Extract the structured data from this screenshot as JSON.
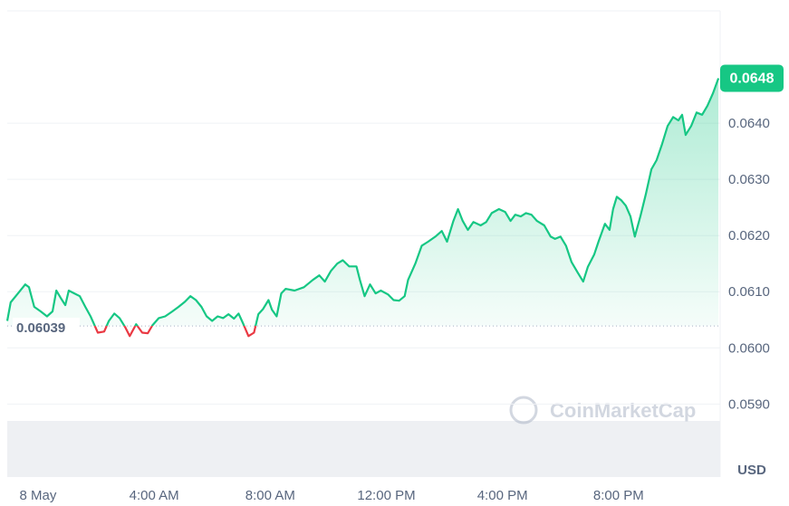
{
  "chart_data": {
    "type": "line",
    "color": "#16c784",
    "below_color": "#ea3943",
    "x": [
      -1.06,
      -0.94,
      -0.69,
      -0.44,
      -0.31,
      -0.13,
      0.09,
      0.31,
      0.5,
      0.63,
      0.78,
      0.94,
      1.06,
      1.25,
      1.44,
      1.63,
      1.81,
      2.06,
      2.28,
      2.44,
      2.63,
      2.81,
      3.0,
      3.16,
      3.38,
      3.59,
      3.78,
      3.94,
      4.16,
      4.38,
      4.63,
      4.84,
      5.06,
      5.25,
      5.44,
      5.63,
      5.81,
      6.0,
      6.19,
      6.38,
      6.56,
      6.75,
      6.91,
      7.06,
      7.25,
      7.44,
      7.59,
      7.75,
      7.94,
      8.06,
      8.22,
      8.38,
      8.53,
      8.84,
      9.16,
      9.47,
      9.69,
      9.88,
      10.09,
      10.31,
      10.5,
      10.72,
      10.97,
      11.09,
      11.25,
      11.44,
      11.63,
      11.81,
      12.06,
      12.25,
      12.44,
      12.63,
      12.75,
      13.0,
      13.22,
      13.44,
      13.69,
      13.91,
      14.09,
      14.31,
      14.47,
      14.63,
      14.81,
      15.0,
      15.25,
      15.44,
      15.63,
      15.88,
      16.09,
      16.28,
      16.44,
      16.63,
      16.81,
      17.0,
      17.19,
      17.44,
      17.66,
      17.81,
      18.0,
      18.19,
      18.38,
      18.59,
      18.78,
      18.94,
      19.16,
      19.31,
      19.53,
      19.69,
      19.81,
      19.94,
      20.09,
      20.25,
      20.41,
      20.56,
      20.75,
      20.94,
      21.13,
      21.31,
      21.5,
      21.69,
      21.88,
      22.06,
      22.19,
      22.31,
      22.5,
      22.69,
      22.88,
      23.06,
      23.25,
      23.44
    ],
    "values": [
      0.06048,
      0.06081,
      0.06097,
      0.06113,
      0.06108,
      0.06073,
      0.06065,
      0.06056,
      0.06065,
      0.06102,
      0.06089,
      0.06076,
      0.06102,
      0.06097,
      0.06092,
      0.06073,
      0.06056,
      0.06027,
      0.06029,
      0.06048,
      0.06061,
      0.06053,
      0.06037,
      0.06021,
      0.06042,
      0.06027,
      0.06026,
      0.0604,
      0.06053,
      0.06056,
      0.06065,
      0.06073,
      0.06082,
      0.06092,
      0.06085,
      0.06073,
      0.06056,
      0.06048,
      0.06056,
      0.06053,
      0.0606,
      0.06052,
      0.06061,
      0.06044,
      0.06021,
      0.06027,
      0.0606,
      0.06069,
      0.06085,
      0.06068,
      0.06056,
      0.06097,
      0.06105,
      0.06102,
      0.06108,
      0.06121,
      0.06129,
      0.06118,
      0.06137,
      0.0615,
      0.06156,
      0.06145,
      0.06145,
      0.06121,
      0.06092,
      0.06113,
      0.06097,
      0.06102,
      0.06095,
      0.06085,
      0.06084,
      0.06092,
      0.06121,
      0.0615,
      0.06182,
      0.06189,
      0.06198,
      0.06208,
      0.06189,
      0.06226,
      0.06247,
      0.06226,
      0.0621,
      0.06224,
      0.06218,
      0.06224,
      0.0624,
      0.06247,
      0.06242,
      0.06226,
      0.06237,
      0.06234,
      0.0624,
      0.06237,
      0.06226,
      0.06218,
      0.06198,
      0.06194,
      0.06198,
      0.06182,
      0.06153,
      0.06134,
      0.06118,
      0.06144,
      0.06166,
      0.06189,
      0.06221,
      0.0621,
      0.06247,
      0.06269,
      0.06263,
      0.06253,
      0.06234,
      0.06198,
      0.06234,
      0.06274,
      0.06318,
      0.06334,
      0.06363,
      0.06395,
      0.06411,
      0.06405,
      0.06415,
      0.06379,
      0.06395,
      0.06419,
      0.06415,
      0.06431,
      0.06453,
      0.0648
    ],
    "reference": 0.06039,
    "current": 0.0648,
    "xlim": [
      -1.06,
      23.5
    ],
    "ylim": [
      0.0577,
      0.066
    ],
    "xticks": [
      {
        "value": 0,
        "label": "8 May"
      },
      {
        "value": 4,
        "label": "4:00 AM"
      },
      {
        "value": 8,
        "label": "8:00 AM"
      },
      {
        "value": 12,
        "label": "12:00 PM"
      },
      {
        "value": 16,
        "label": "4:00 PM"
      },
      {
        "value": 20,
        "label": "8:00 PM"
      }
    ],
    "yticks": [
      {
        "value": 0.059,
        "label": "0.0590"
      },
      {
        "value": 0.06,
        "label": "0.0600"
      },
      {
        "value": 0.061,
        "label": "0.0610"
      },
      {
        "value": 0.062,
        "label": "0.0620"
      },
      {
        "value": 0.063,
        "label": "0.0630"
      },
      {
        "value": 0.064,
        "label": "0.0640"
      }
    ],
    "grid": true,
    "y_unit": "USD",
    "watermark": "CoinMarketCap"
  }
}
